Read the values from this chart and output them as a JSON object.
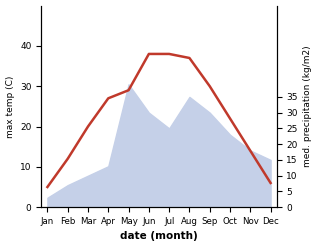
{
  "months": [
    "Jan",
    "Feb",
    "Mar",
    "Apr",
    "May",
    "Jun",
    "Jul",
    "Aug",
    "Sep",
    "Oct",
    "Nov",
    "Dec"
  ],
  "max_temp": [
    5,
    12,
    20,
    27,
    29,
    38,
    38,
    37,
    30,
    22,
    14,
    6
  ],
  "precipitation": [
    3,
    7,
    10,
    13,
    39,
    30,
    25,
    35,
    30,
    23,
    18,
    15
  ],
  "temp_color": "#c0392b",
  "precip_fill_color": "#c5d0e8",
  "temp_ylim": [
    0,
    50
  ],
  "precip_ylim": [
    0,
    64
  ],
  "temp_yticks": [
    0,
    10,
    20,
    30,
    40
  ],
  "precip_yticks": [
    0,
    5,
    10,
    15,
    20,
    25,
    30,
    35
  ],
  "precip_ytick_max": 35,
  "ylabel_left": "max temp (C)",
  "ylabel_right": "med. precipitation (kg/m2)",
  "xlabel": "date (month)",
  "background_color": "#ffffff"
}
